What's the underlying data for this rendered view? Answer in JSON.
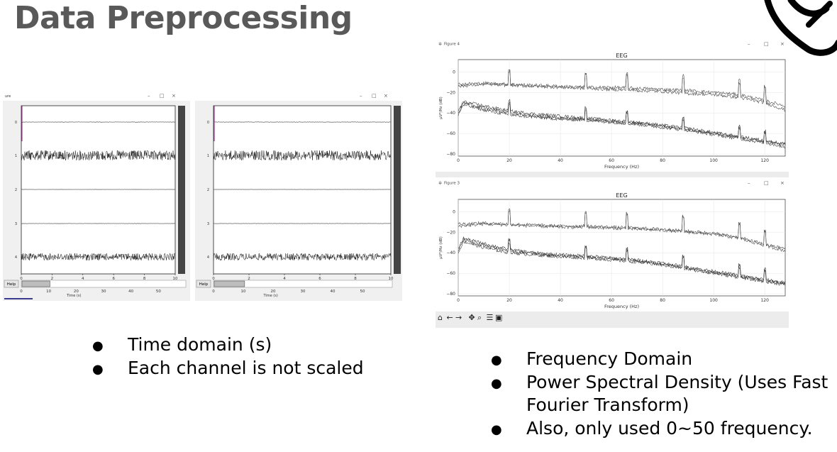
{
  "title": "Data Preprocessing",
  "left_bullets": [
    "Time domain (s)",
    "Each channel is not scaled"
  ],
  "right_bullets": [
    "Frequency Domain",
    "Power Spectral Density (Uses Fast Fourier Transform)",
    "Also, only used 0~50 frequency."
  ],
  "time_windows": [
    {
      "title": "ure",
      "channel_labels": [
        "0",
        "1",
        "2",
        "3",
        "4"
      ],
      "x_ticks": [
        "0",
        "2",
        "4",
        "6",
        "8",
        "10"
      ],
      "scroll_ticks": [
        "0",
        "10",
        "20",
        "30",
        "40",
        "50"
      ],
      "scroll_label": "Time (s)",
      "help_label": "Help"
    },
    {
      "title": "",
      "channel_labels": [
        "0",
        "1",
        "2",
        "3",
        "4"
      ],
      "x_ticks": [
        "0",
        "2",
        "4",
        "6",
        "8",
        "10"
      ],
      "scroll_ticks": [
        "0",
        "10",
        "20",
        "30",
        "40",
        "50"
      ],
      "scroll_label": "Time (s)",
      "help_label": "Help"
    }
  ],
  "psd_windows": [
    {
      "window_title": "Figure 4",
      "plot_title": "EEG",
      "xlabel": "Frequency (Hz)",
      "ylabel": "µV²/Hz (dB)",
      "x_ticks": [
        "0",
        "20",
        "40",
        "60",
        "80",
        "100",
        "120"
      ],
      "y_ticks": [
        "0",
        "−20",
        "−40",
        "−60",
        "−80"
      ]
    },
    {
      "window_title": "Figure 3",
      "plot_title": "EEG",
      "xlabel": "Frequency (Hz)",
      "ylabel": "µV²/Hz (dB)",
      "x_ticks": [
        "0",
        "20",
        "40",
        "60",
        "80",
        "100",
        "120"
      ],
      "y_ticks": [
        "0",
        "−20",
        "−40",
        "−60",
        "−80"
      ]
    }
  ],
  "chart_data": [
    {
      "type": "line",
      "title": "EEG",
      "xlabel": "Frequency (Hz)",
      "ylabel": "µV²/Hz (dB)",
      "xlim": [
        0,
        128
      ],
      "ylim": [
        -82,
        12
      ],
      "grid": true,
      "series": [
        {
          "x": [
            0,
            10,
            20,
            30,
            40,
            50,
            60,
            70,
            80,
            90,
            100,
            110,
            120,
            128
          ],
          "y": [
            -12,
            -11,
            -12,
            -13,
            -14,
            -15,
            -15,
            -16,
            -17,
            -18,
            -20,
            -22,
            -28,
            -33
          ]
        },
        {
          "x": [
            0,
            10,
            20,
            30,
            40,
            50,
            60,
            70,
            80,
            90,
            100,
            110,
            120,
            128
          ],
          "y": [
            -14,
            -12,
            -13,
            -14,
            -15,
            -16,
            -17,
            -18,
            -19,
            -21,
            -22,
            -25,
            -30,
            -37
          ]
        },
        {
          "x": [
            0,
            2,
            10,
            20,
            30,
            40,
            50,
            60,
            70,
            80,
            90,
            100,
            110,
            120,
            128
          ],
          "y": [
            -40,
            -30,
            -35,
            -40,
            -43,
            -45,
            -46,
            -48,
            -50,
            -53,
            -56,
            -60,
            -64,
            -68,
            -71
          ]
        },
        {
          "x": [
            0,
            2,
            10,
            20,
            30,
            40,
            50,
            60,
            70,
            80,
            90,
            100,
            110,
            120,
            128
          ],
          "y": [
            -38,
            -29,
            -33,
            -38,
            -41,
            -43,
            -45,
            -47,
            -49,
            -52,
            -55,
            -59,
            -63,
            -67,
            -70
          ]
        },
        {
          "x": [
            0,
            2,
            10,
            20,
            30,
            40,
            50,
            60,
            70,
            80,
            90,
            100,
            110,
            120,
            128
          ],
          "y": [
            -42,
            -32,
            -37,
            -42,
            -44,
            -46,
            -47,
            -49,
            -51,
            -54,
            -57,
            -61,
            -65,
            -69,
            -73
          ]
        }
      ],
      "peaks_hz": [
        20,
        50,
        66,
        88,
        110,
        120
      ]
    },
    {
      "type": "line",
      "title": "EEG",
      "xlabel": "Frequency (Hz)",
      "ylabel": "µV²/Hz (dB)",
      "xlim": [
        0,
        128
      ],
      "ylim": [
        -82,
        12
      ],
      "grid": true,
      "series": [
        {
          "x": [
            0,
            10,
            20,
            30,
            40,
            50,
            60,
            70,
            80,
            90,
            100,
            110,
            120,
            128
          ],
          "y": [
            -12,
            -11,
            -12,
            -13,
            -14,
            -14,
            -15,
            -16,
            -17,
            -19,
            -21,
            -25,
            -32,
            -36
          ]
        },
        {
          "x": [
            0,
            10,
            20,
            30,
            40,
            50,
            60,
            70,
            80,
            90,
            100,
            110,
            120,
            128
          ],
          "y": [
            -14,
            -12,
            -13,
            -14,
            -15,
            -15,
            -16,
            -17,
            -18,
            -20,
            -22,
            -26,
            -33,
            -38
          ]
        },
        {
          "x": [
            0,
            2,
            10,
            20,
            30,
            40,
            50,
            60,
            70,
            80,
            90,
            100,
            110,
            120,
            128
          ],
          "y": [
            -38,
            -27,
            -33,
            -38,
            -41,
            -43,
            -44,
            -46,
            -48,
            -51,
            -55,
            -59,
            -63,
            -67,
            -70
          ]
        },
        {
          "x": [
            0,
            2,
            10,
            20,
            30,
            40,
            50,
            60,
            70,
            80,
            90,
            100,
            110,
            120,
            128
          ],
          "y": [
            -40,
            -29,
            -35,
            -40,
            -42,
            -44,
            -45,
            -47,
            -49,
            -52,
            -56,
            -60,
            -64,
            -68,
            -71
          ]
        },
        {
          "x": [
            0,
            2,
            10,
            20,
            30,
            40,
            50,
            60,
            70,
            80,
            90,
            100,
            110,
            120,
            128
          ],
          "y": [
            -36,
            -26,
            -31,
            -37,
            -40,
            -42,
            -43,
            -45,
            -47,
            -50,
            -54,
            -58,
            -62,
            -66,
            -69
          ]
        }
      ],
      "peaks_hz": [
        20,
        50,
        66,
        88,
        110,
        120
      ]
    }
  ]
}
